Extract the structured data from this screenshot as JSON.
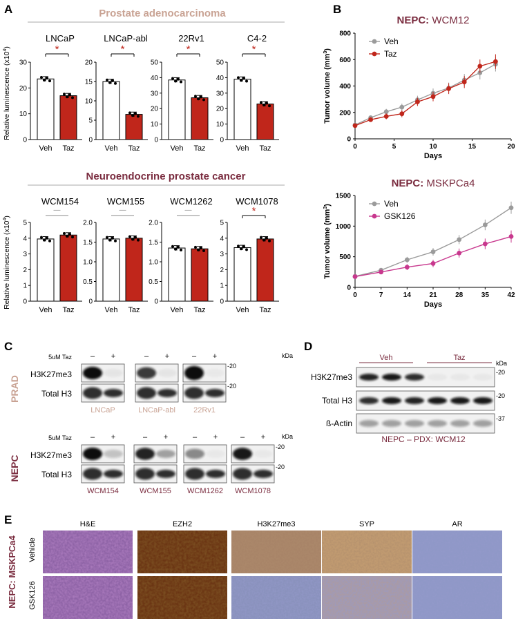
{
  "panel_letters": {
    "a": "A",
    "b": "B",
    "c": "C",
    "d": "D",
    "e": "E"
  },
  "panel_a": {
    "section1_title": "Prostate adenocarcinoma",
    "section2_title": "Neuroendocrine prostate cancer",
    "ylabel_line1": "Relative luminescence (x10",
    "ylabel_exp": "4",
    "ylabel_line2": ")",
    "xcat_veh": "Veh",
    "xcat_taz": "Taz",
    "sig_star": "*",
    "ns_mark": "—"
  },
  "chart_data": [
    {
      "type": "bar",
      "title": "LNCaP",
      "categories": [
        "Veh",
        "Taz"
      ],
      "values": [
        23.5,
        17
      ],
      "ylim": [
        0,
        30
      ],
      "yticks": [
        0,
        10,
        20,
        30
      ],
      "significance": "*"
    },
    {
      "type": "bar",
      "title": "LNCaP-abl",
      "categories": [
        "Veh",
        "Taz"
      ],
      "values": [
        15,
        6.5
      ],
      "ylim": [
        0,
        20
      ],
      "yticks": [
        0,
        5,
        10,
        15,
        20
      ],
      "significance": "*"
    },
    {
      "type": "bar",
      "title": "22Rv1",
      "categories": [
        "Veh",
        "Taz"
      ],
      "values": [
        38.5,
        27
      ],
      "ylim": [
        0,
        50
      ],
      "yticks": [
        0,
        10,
        20,
        30,
        40,
        50
      ],
      "significance": "*"
    },
    {
      "type": "bar",
      "title": "C4-2",
      "categories": [
        "Veh",
        "Taz"
      ],
      "values": [
        39,
        23
      ],
      "ylim": [
        0,
        50
      ],
      "yticks": [
        0,
        10,
        20,
        30,
        40,
        50
      ],
      "significance": "*"
    },
    {
      "type": "bar",
      "title": "WCM154",
      "categories": [
        "Veh",
        "Taz"
      ],
      "values": [
        3.95,
        4.2
      ],
      "ylim": [
        0,
        5
      ],
      "yticks": [
        0,
        1,
        2,
        3,
        4,
        5
      ],
      "significance": "—"
    },
    {
      "type": "bar",
      "title": "WCM155",
      "categories": [
        "Veh",
        "Taz"
      ],
      "values": [
        1.58,
        1.6
      ],
      "ylim": [
        0,
        2.0
      ],
      "yticks": [
        "0",
        "0.5",
        "1.0",
        "1.5",
        "2.0"
      ],
      "significance": "—"
    },
    {
      "type": "bar",
      "title": "WCM1262",
      "categories": [
        "Veh",
        "Taz"
      ],
      "values": [
        1.35,
        1.33
      ],
      "ylim": [
        0,
        2.0
      ],
      "yticks": [
        "0",
        "0.5",
        "1.0",
        "1.5",
        "2.0"
      ],
      "significance": "—"
    },
    {
      "type": "bar",
      "title": "WCM1078",
      "categories": [
        "Veh",
        "Taz"
      ],
      "values": [
        3.4,
        3.95
      ],
      "ylim": [
        0,
        5
      ],
      "yticks": [
        0,
        1,
        2,
        3,
        4,
        5
      ],
      "significance": "*"
    },
    {
      "type": "line",
      "title_bold": "NEPC:",
      "title_rest": " WCM12",
      "xlabel": "Days",
      "ylabel_pre": "Tumor volume (mm",
      "ylabel_exp": "3",
      "ylabel_post": ")",
      "xlim": [
        0,
        20
      ],
      "ylim": [
        0,
        800
      ],
      "xticks": [
        0,
        5,
        10,
        15,
        20
      ],
      "yticks": [
        0,
        200,
        400,
        600,
        800
      ],
      "legend": "top-left",
      "series": [
        {
          "name": "Veh",
          "color": "#9b9b9b",
          "x": [
            0,
            2,
            4,
            6,
            8,
            10,
            12,
            14,
            16,
            18
          ],
          "y": [
            105,
            160,
            205,
            240,
            295,
            345,
            385,
            445,
            500,
            565
          ]
        },
        {
          "name": "Taz",
          "color": "#c0261b",
          "x": [
            0,
            2,
            4,
            6,
            8,
            10,
            12,
            14,
            16,
            18
          ],
          "y": [
            100,
            145,
            170,
            190,
            280,
            320,
            380,
            430,
            550,
            585
          ]
        }
      ]
    },
    {
      "type": "line",
      "title_bold": "NEPC:",
      "title_rest": " MSKPCa4",
      "xlabel": "Days",
      "ylabel_pre": "Tumor volume (mm",
      "ylabel_exp": "3",
      "ylabel_post": ")",
      "xlim": [
        0,
        42
      ],
      "ylim": [
        0,
        1500
      ],
      "xticks": [
        0,
        7,
        14,
        21,
        28,
        35,
        42
      ],
      "yticks": [
        0,
        500,
        1000,
        1500
      ],
      "legend": "top-left",
      "series": [
        {
          "name": "Veh",
          "color": "#9b9b9b",
          "x": [
            0,
            7,
            14,
            21,
            28,
            35,
            42
          ],
          "y": [
            180,
            280,
            450,
            580,
            780,
            1020,
            1300
          ]
        },
        {
          "name": "GSK126",
          "color": "#c8388e",
          "x": [
            0,
            7,
            14,
            21,
            28,
            35,
            42
          ],
          "y": [
            175,
            250,
            330,
            390,
            560,
            710,
            830
          ]
        }
      ]
    }
  ],
  "panel_c": {
    "treatment_label": "5uM Taz",
    "minus": "–",
    "plus": "+",
    "kda": "kDa",
    "marker": "-20",
    "prad_label": "PRAD",
    "nepc_label": "NEPC",
    "row1": "H3K27me3",
    "row2": "Total H3",
    "prad_lines": [
      "LNCaP",
      "LNCaP-abl",
      "22Rv1"
    ],
    "nepc_lines": [
      "WCM154",
      "WCM155",
      "WCM1262",
      "WCM1078"
    ]
  },
  "panel_d": {
    "veh": "Veh",
    "taz": "Taz",
    "kda": "kDa",
    "rows": [
      "H3K27me3",
      "Total H3",
      "ß-Actin"
    ],
    "markers": [
      "-20",
      "-20",
      "-37"
    ],
    "caption": "NEPC – PDX: WCM12"
  },
  "panel_e": {
    "side_label": "NEPC: MSKPCa4",
    "rows": [
      "Vehicle",
      "GSK126"
    ],
    "stains": [
      "H&E",
      "EZH2",
      "H3K27me3",
      "SYP",
      "AR"
    ],
    "colors": {
      "he": "#8e63a6",
      "ezh2": "#6b3513",
      "h3k_veh": "#a88468",
      "h3k_gsk": "#8a92bd",
      "syp_veh": "#c09a70",
      "syp_gsk": "#a99aa6",
      "ar": "#8f98c7"
    }
  }
}
